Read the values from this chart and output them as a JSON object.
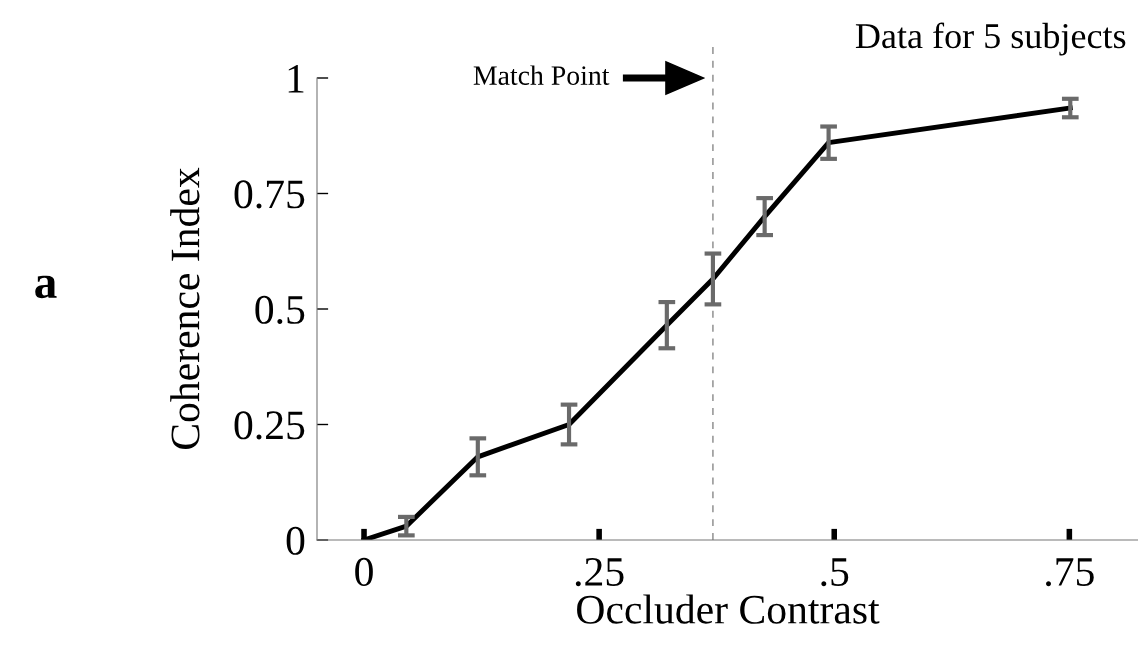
{
  "chart_data": {
    "type": "line",
    "xlabel": "Occluder Contrast",
    "ylabel": "Coherence Index",
    "x": [
      0,
      0.045,
      0.121,
      0.218,
      0.322,
      0.371,
      0.426,
      0.494,
      0.751
    ],
    "series": [
      {
        "color": "#000000",
        "values": [
          0.0,
          0.03,
          0.18,
          0.25,
          0.465,
          0.565,
          0.7,
          0.86,
          0.935
        ],
        "errors": [
          null,
          0.02,
          0.04,
          0.043,
          0.05,
          0.055,
          0.04,
          0.035,
          0.02
        ]
      }
    ],
    "xlim": [
      -0.05,
      0.823
    ],
    "ylim": [
      0,
      1
    ],
    "xticks": [
      0,
      {
        "value": 0.25,
        "label": ".25"
      },
      {
        "value": 0.5,
        "label": ".5"
      },
      {
        "value": 0.75,
        "label": ".75"
      }
    ],
    "yticks": [
      0,
      0.25,
      0.5,
      0.75,
      1
    ],
    "ref_lines": [
      {
        "axis": "x",
        "value": 0.371,
        "color": "#888888",
        "line_style": "dashed"
      }
    ],
    "annotations": [
      "Match Point",
      "Data for 5 subjects",
      "a"
    ],
    "grid": false,
    "legend": false,
    "marker": "none",
    "line_style": "solid"
  }
}
